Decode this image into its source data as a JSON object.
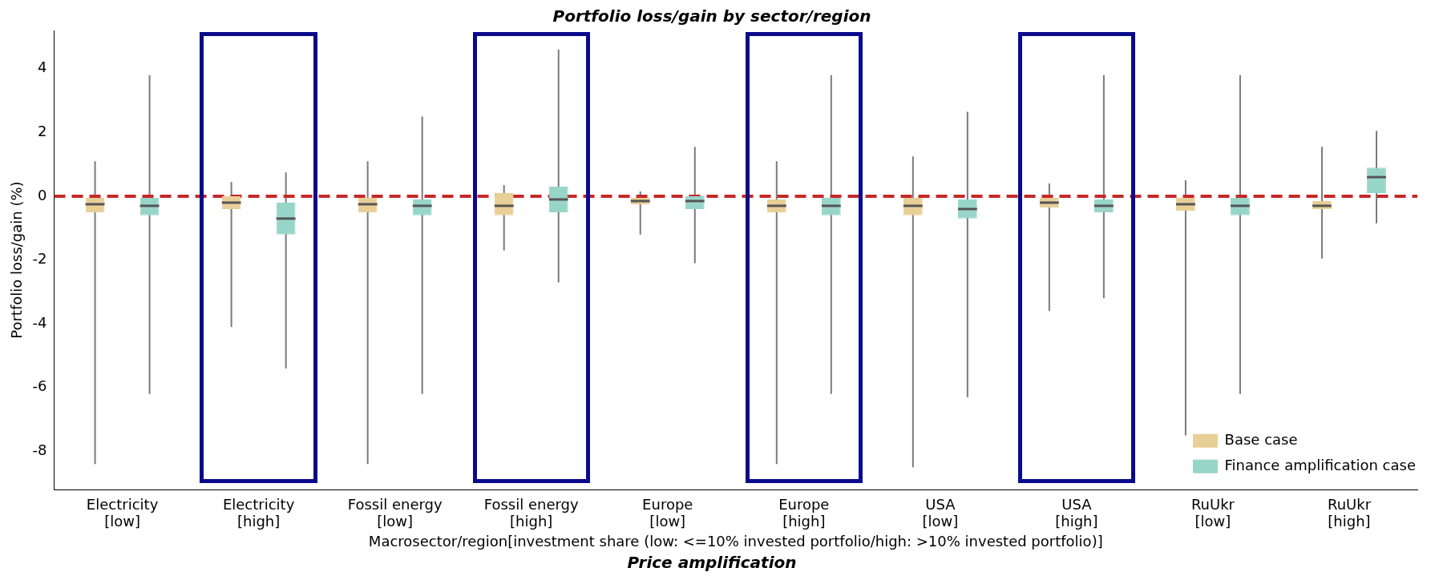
{
  "chart_data": {
    "type": "box",
    "title": "Portfolio loss/gain by sector/region",
    "xlabel": "Macrosector/region[investment share (low: <=10% invested portfolio/high: >10% invested portfolio)]",
    "ylabel": "Portfolio loss/gain (%)",
    "annotations": [
      "Price amplification"
    ],
    "categories": [
      "Electricity\n[low]",
      "Electricity\n[high]",
      "Fossil energy\n[low]",
      "Fossil energy\n[high]",
      "Europe\n[low]",
      "Europe\n[high]",
      "USA\n[low]",
      "USA\n[high]",
      "RuUkr\n[low]",
      "RuUkr\n[high]"
    ],
    "series": [
      {
        "name": "Base case",
        "color": "#e8cf98",
        "boxes": [
          {
            "low": -8.4,
            "q1": -0.5,
            "median": -0.25,
            "q3": -0.05,
            "high": 1.1
          },
          {
            "low": -4.1,
            "q1": -0.4,
            "median": -0.2,
            "q3": 0.0,
            "high": 0.45
          },
          {
            "low": -8.4,
            "q1": -0.5,
            "median": -0.25,
            "q3": -0.05,
            "high": 1.1
          },
          {
            "low": -1.7,
            "q1": -0.6,
            "median": -0.3,
            "q3": 0.1,
            "high": 0.35
          },
          {
            "low": -1.2,
            "q1": -0.25,
            "median": -0.15,
            "q3": -0.05,
            "high": 0.15
          },
          {
            "low": -8.4,
            "q1": -0.5,
            "median": -0.3,
            "q3": -0.1,
            "high": 1.1
          },
          {
            "low": -8.5,
            "q1": -0.6,
            "median": -0.3,
            "q3": -0.05,
            "high": 1.25
          },
          {
            "low": -3.6,
            "q1": -0.35,
            "median": -0.2,
            "q3": -0.05,
            "high": 0.4
          },
          {
            "low": -7.5,
            "q1": -0.45,
            "median": -0.25,
            "q3": -0.05,
            "high": 0.5
          },
          {
            "low": -1.95,
            "q1": -0.4,
            "median": -0.3,
            "q3": -0.15,
            "high": 1.55
          }
        ]
      },
      {
        "name": "Finance amplification case",
        "color": "#98d5c9",
        "boxes": [
          {
            "low": -6.2,
            "q1": -0.6,
            "median": -0.3,
            "q3": -0.05,
            "high": 3.8
          },
          {
            "low": -5.4,
            "q1": -1.2,
            "median": -0.7,
            "q3": -0.2,
            "high": 0.75
          },
          {
            "low": -6.2,
            "q1": -0.6,
            "median": -0.3,
            "q3": -0.1,
            "high": 2.5
          },
          {
            "low": -2.7,
            "q1": -0.5,
            "median": -0.1,
            "q3": 0.3,
            "high": 4.6
          },
          {
            "low": -2.1,
            "q1": -0.4,
            "median": -0.15,
            "q3": 0.0,
            "high": 1.55
          },
          {
            "low": -6.2,
            "q1": -0.6,
            "median": -0.3,
            "q3": -0.05,
            "high": 3.8
          },
          {
            "low": -6.3,
            "q1": -0.7,
            "median": -0.4,
            "q3": -0.1,
            "high": 2.65
          },
          {
            "low": -3.2,
            "q1": -0.5,
            "median": -0.3,
            "q3": -0.1,
            "high": 3.8
          },
          {
            "low": -6.2,
            "q1": -0.6,
            "median": -0.3,
            "q3": -0.05,
            "high": 3.8
          },
          {
            "low": -0.85,
            "q1": 0.1,
            "median": 0.6,
            "q3": 0.9,
            "high": 2.05
          }
        ]
      }
    ],
    "ylim": [
      -9.2,
      5.2
    ],
    "yticks": [
      -8,
      -6,
      -4,
      -2,
      0,
      2,
      4
    ],
    "ref_lines": [
      {
        "axis": "y",
        "value": 0,
        "color": "#c62828",
        "line_style": "dashed"
      }
    ],
    "legend": "bottom right",
    "grid": false
  }
}
